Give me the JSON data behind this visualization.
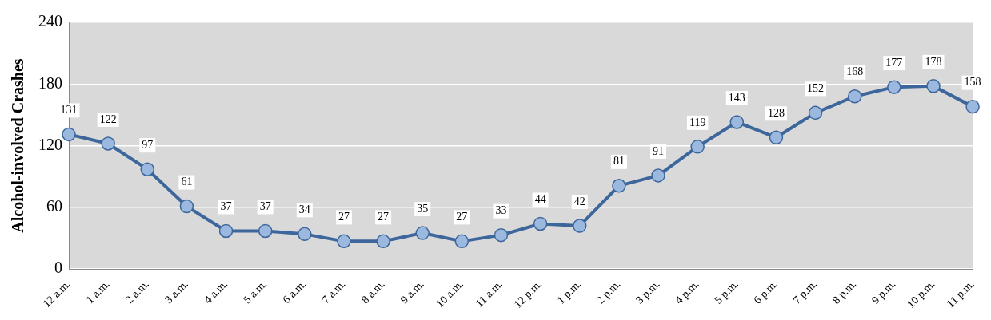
{
  "chart_data": {
    "type": "line",
    "ylabel": "Alcohol-involved Crashes",
    "categories": [
      "12 a.m.",
      "1 a.m.",
      "2 a.m.",
      "3 a.m.",
      "4 a.m.",
      "5 a.m.",
      "6 a.m.",
      "7 a.m.",
      "8 a.m.",
      "9 a.m.",
      "10 a.m.",
      "11 a.m.",
      "12 p.m.",
      "1 p.m.",
      "2 p.m.",
      "3 p.m.",
      "4 p.m.",
      "5 p.m.",
      "6 p.m.",
      "7 p.m.",
      "8 p.m.",
      "9 p.m.",
      "10 p.m.",
      "11 p.m."
    ],
    "series": [
      {
        "color": "#3d679c",
        "values": [
          131,
          122,
          97,
          61,
          37,
          37,
          34,
          27,
          27,
          35,
          27,
          33,
          44,
          42,
          81,
          91,
          119,
          143,
          128,
          152,
          168,
          177,
          178,
          158
        ]
      }
    ],
    "ylim": [
      0,
      240
    ],
    "yticks": [
      0,
      60,
      120,
      180,
      240
    ],
    "grid": "y",
    "legend": false,
    "marker": "circle",
    "line_style": "solid",
    "data_labels": true
  }
}
